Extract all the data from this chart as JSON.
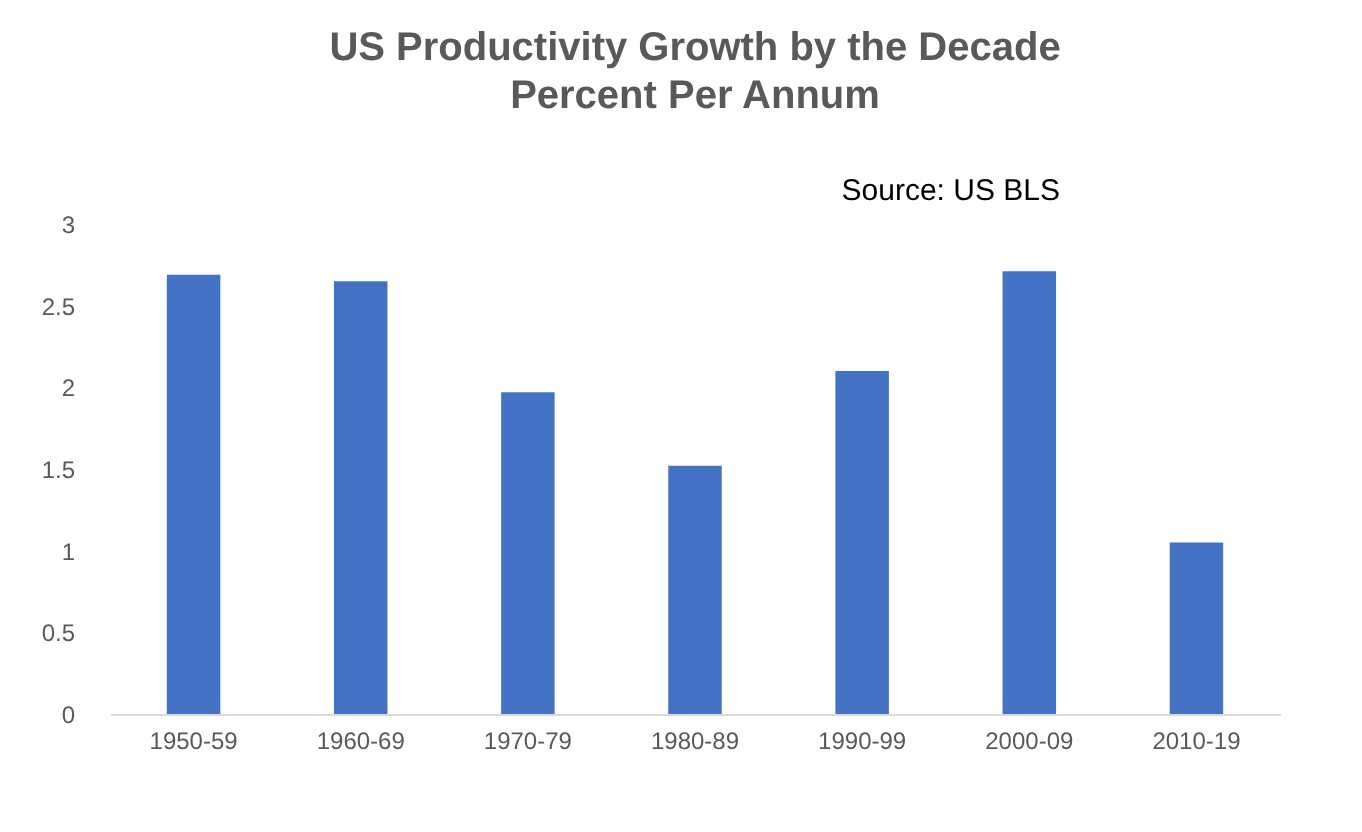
{
  "chart_data": {
    "type": "bar",
    "title": "US Productivity Growth by the Decade",
    "subtitle": "Percent Per Annum",
    "categories": [
      "1950-59",
      "1960-69",
      "1970-79",
      "1980-89",
      "1990-99",
      "2000-09",
      "2010-19"
    ],
    "values": [
      2.69,
      2.65,
      1.97,
      1.52,
      2.1,
      2.71,
      1.05
    ],
    "color": "#4472c4",
    "ylim": [
      0,
      3
    ],
    "yticks": [
      0,
      0.5,
      1,
      1.5,
      2,
      2.5,
      3
    ],
    "grid": false,
    "annotations": [
      "Source: US BLS"
    ]
  }
}
